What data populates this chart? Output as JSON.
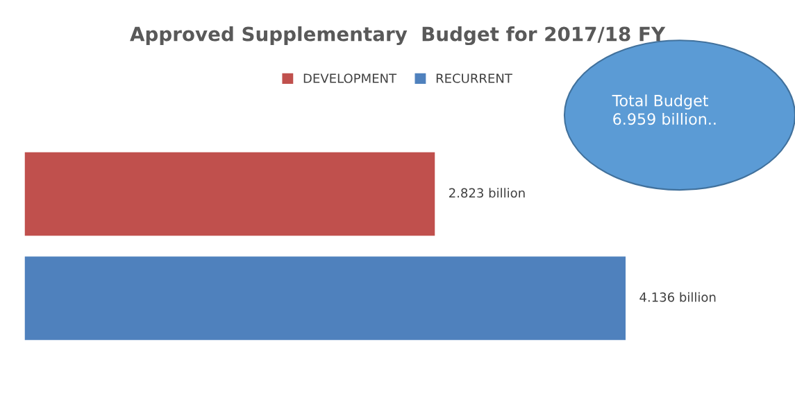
{
  "chart_data": {
    "type": "bar",
    "orientation": "horizontal",
    "title": "Approved Supplementary  Budget for 2017/18 FY",
    "categories": [
      null
    ],
    "series": [
      {
        "name": "DEVELOPMENT",
        "color": "#c0504d",
        "values": [
          2.823
        ],
        "value_labels": [
          "2.823 billion"
        ]
      },
      {
        "name": "RECURRENT",
        "color": "#4f81bd",
        "values": [
          4.136
        ],
        "value_labels": [
          "4.136 billion"
        ]
      }
    ],
    "annotations": [
      "Total Budget\n6.959 billion.."
    ],
    "legend": "top",
    "grid": false,
    "tick_labels": false
  }
}
